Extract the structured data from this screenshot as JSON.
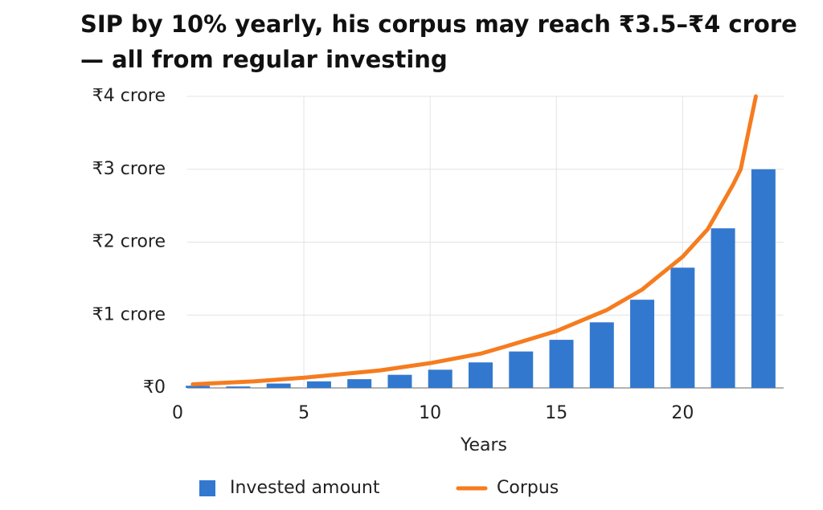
{
  "chart_data": {
    "type": "bar-line",
    "title": "SIP by 10% yearly, his corpus may reach ₹3.5–₹4 crore — all from regular investing",
    "x_label": "Years",
    "xlim": [
      0,
      24
    ],
    "xticks": [
      0,
      5,
      10,
      15,
      20
    ],
    "ylim": [
      0,
      4
    ],
    "yticks": [
      {
        "value": 0,
        "label": "₹0"
      },
      {
        "value": 1,
        "label": "₹1 crore"
      },
      {
        "value": 2,
        "label": "₹2 crore"
      },
      {
        "value": 3,
        "label": "₹3 crore"
      },
      {
        "value": 4,
        "label": "₹4 crore"
      }
    ],
    "grid": true,
    "series": [
      {
        "name": "Invested amount",
        "type": "bar",
        "color": "#3378cf",
        "x": [
          0.8,
          2.4,
          4.0,
          5.6,
          7.2,
          8.8,
          10.4,
          12.0,
          13.6,
          15.2,
          16.8,
          18.4,
          20.0,
          21.6,
          23.2
        ],
        "values": [
          0.03,
          0.02,
          0.06,
          0.09,
          0.12,
          0.18,
          0.25,
          0.35,
          0.5,
          0.66,
          0.9,
          1.21,
          1.65,
          2.19,
          3.0
        ]
      },
      {
        "name": "Corpus",
        "type": "line",
        "color": "#f57c1f",
        "x": [
          0.6,
          3,
          5,
          8,
          10,
          12,
          13,
          15,
          17,
          18.4,
          19,
          20,
          21,
          22,
          22.3,
          22.9
        ],
        "values": [
          0.05,
          0.09,
          0.14,
          0.24,
          0.34,
          0.47,
          0.57,
          0.78,
          1.07,
          1.35,
          1.52,
          1.8,
          2.18,
          2.79,
          3.0,
          4.0
        ]
      }
    ]
  }
}
